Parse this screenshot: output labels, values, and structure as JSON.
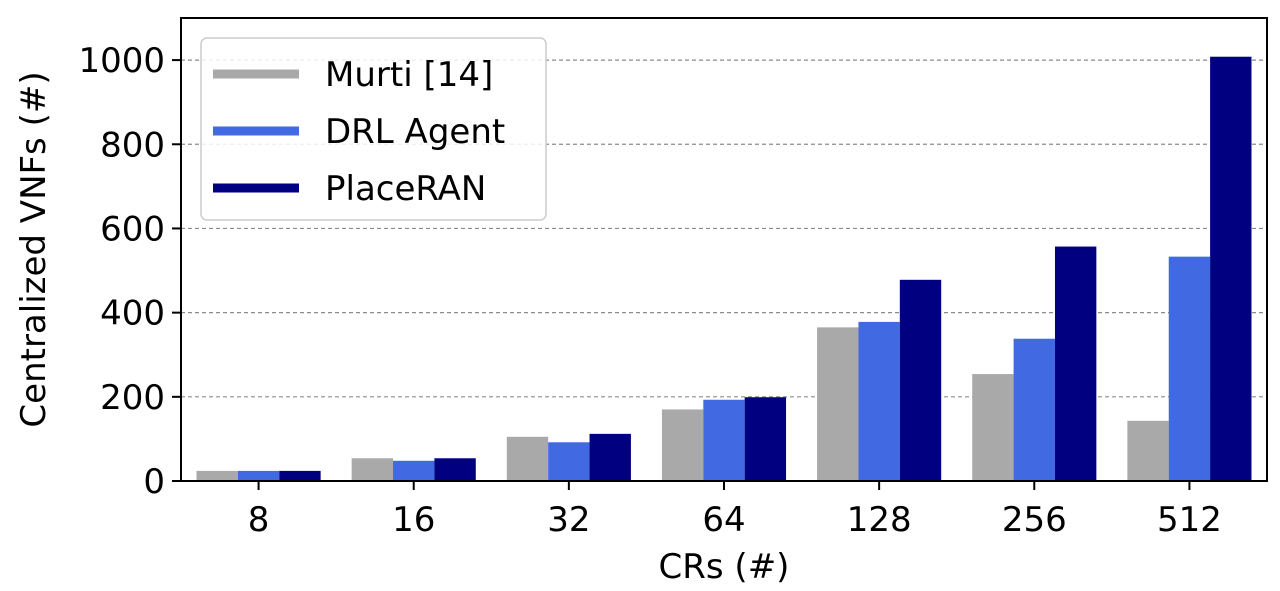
{
  "chart_data": {
    "type": "bar",
    "xlabel": "CRs (#)",
    "ylabel": "Centralized VNFs (#)",
    "categories": [
      "8",
      "16",
      "32",
      "64",
      "128",
      "256",
      "512"
    ],
    "ylim": [
      0,
      1100
    ],
    "yticks": [
      0,
      200,
      400,
      600,
      800,
      1000
    ],
    "grid": "y-dashed",
    "legend_position": "top-left",
    "series": [
      {
        "name": "Murti [14]",
        "color": "#a9a9a9",
        "values": [
          24,
          54,
          105,
          170,
          365,
          254,
          143
        ]
      },
      {
        "name": "DRL Agent",
        "color": "#4169e1",
        "values": [
          24,
          48,
          92,
          193,
          378,
          338,
          533
        ]
      },
      {
        "name": "PlaceRAN",
        "color": "#000080",
        "values": [
          24,
          54,
          112,
          199,
          478,
          557,
          1008
        ]
      }
    ]
  }
}
